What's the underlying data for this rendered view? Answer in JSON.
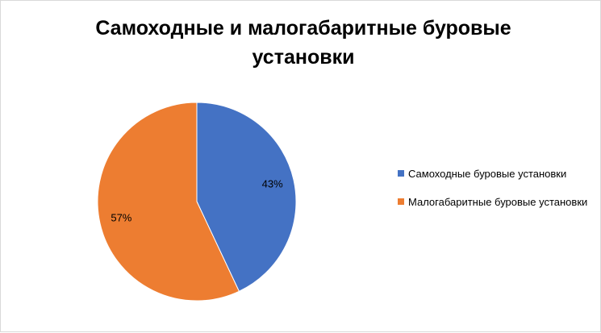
{
  "chart_data": {
    "type": "pie",
    "title": "Самоходные и малогабаритные буровые установки",
    "categories": [
      "Самоходные буровые установки",
      "Малогабаритные буровые установки"
    ],
    "values": [
      43,
      57
    ],
    "value_labels": [
      "43%",
      "57%"
    ],
    "colors": [
      "#4472c4",
      "#ed7d31"
    ],
    "legend": "right"
  }
}
